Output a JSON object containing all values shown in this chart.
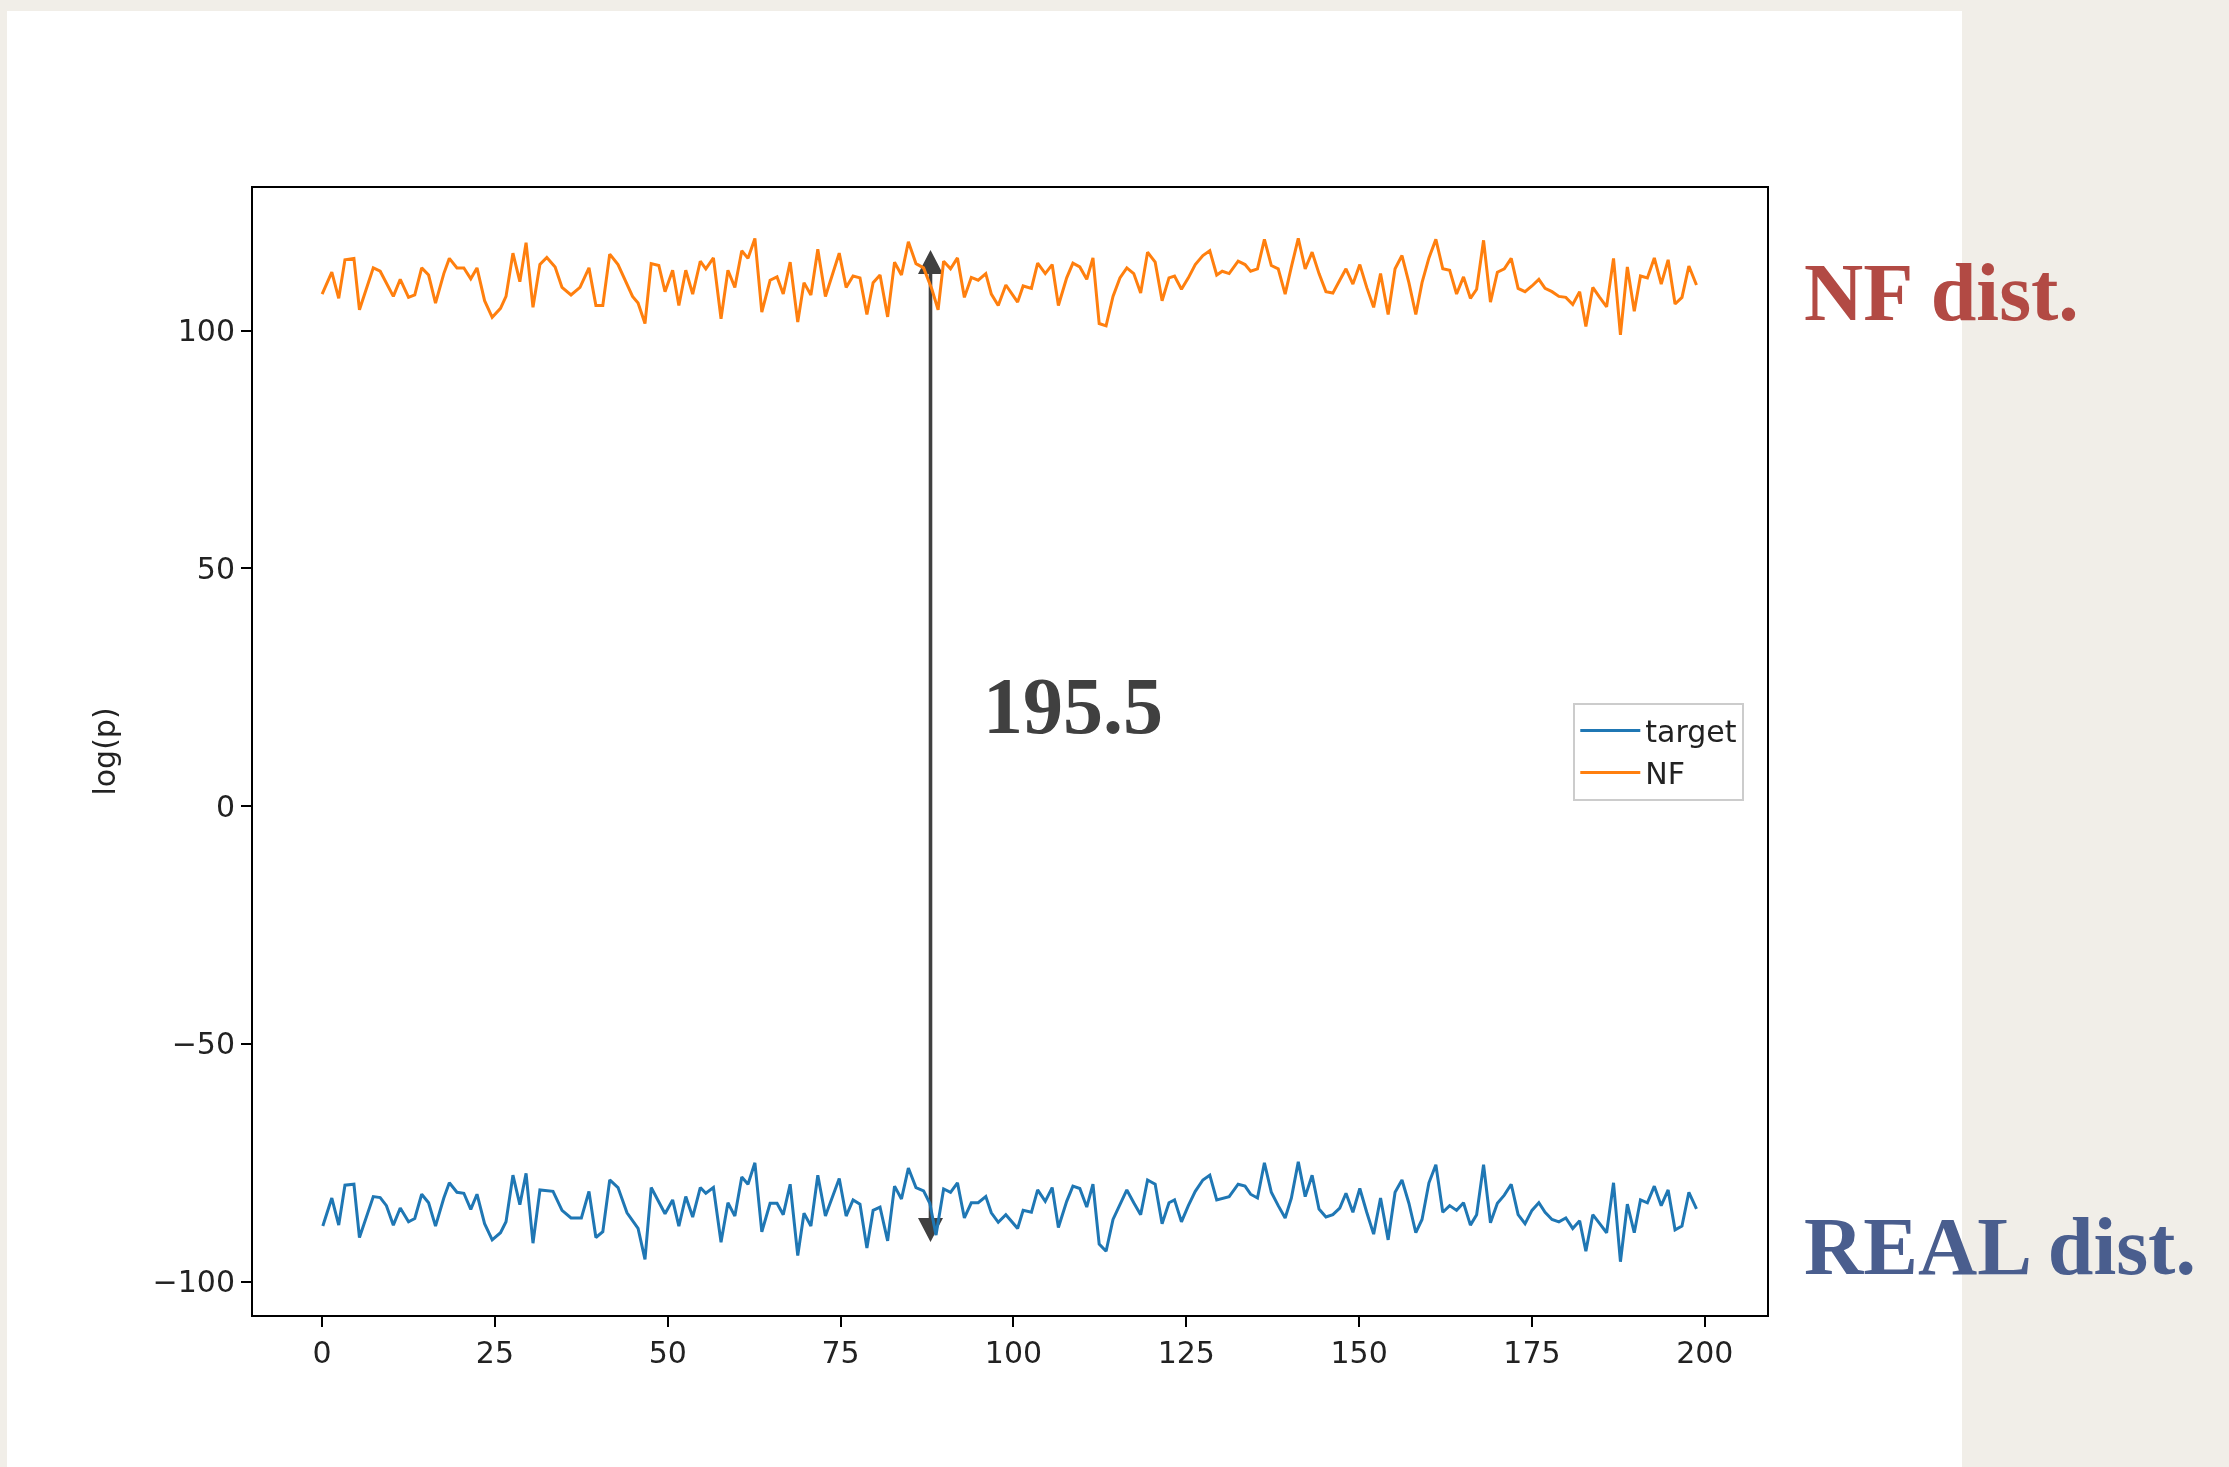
{
  "chart_data": {
    "type": "line",
    "ylabel": "log(p)",
    "xlim": [
      -10,
      209
    ],
    "ylim": [
      -107,
      130
    ],
    "xticks": [
      0,
      25,
      50,
      75,
      100,
      125,
      150,
      175,
      200
    ],
    "yticks": [
      -100,
      -50,
      0,
      50,
      100
    ],
    "grid": false,
    "legend": "right",
    "annotations": [
      "195.5",
      "NF dist.",
      "REAL dist."
    ],
    "series": [
      {
        "name": "target",
        "color": "#1f77b4",
        "x": [
          0.1,
          1.4,
          2.4,
          3.3,
          4.6,
          5.4,
          7.4,
          8.4,
          9.3,
          10.3,
          11.3,
          12.5,
          13.4,
          14.4,
          15.4,
          16.4,
          17.6,
          18.4,
          19.5,
          20.5,
          21.5,
          22.4,
          23.5,
          24.6,
          25.8,
          26.6,
          27.6,
          28.6,
          29.5,
          30.5,
          31.5,
          33.4,
          34.7,
          36.0,
          37.5,
          38.6,
          39.6,
          40.6,
          41.6,
          42.8,
          44.1,
          45.7,
          46.7,
          47.6,
          49.6,
          50.7,
          51.6,
          52.6,
          53.6,
          54.7,
          55.5,
          56.6,
          57.7,
          58.7,
          59.7,
          60.7,
          61.6,
          62.6,
          63.6,
          64.8,
          65.8,
          66.7,
          67.7,
          68.8,
          69.7,
          70.7,
          71.7,
          72.8,
          74.8,
          75.8,
          76.8,
          77.8,
          78.8,
          79.7,
          80.7,
          81.8,
          82.8,
          83.8,
          84.8,
          85.9,
          87.0,
          87.9,
          88.8,
          89.9,
          90.9,
          91.9,
          92.9,
          93.9,
          94.9,
          96.0,
          96.8,
          97.8,
          98.9,
          100.6,
          101.4,
          102.6,
          103.5,
          104.6,
          105.6,
          106.5,
          107.7,
          108.6,
          109.6,
          110.6,
          111.5,
          112.4,
          113.4,
          114.4,
          116.4,
          117.4,
          118.4,
          119.4,
          120.5,
          121.5,
          122.5,
          123.3,
          124.3,
          125.3,
          126.3,
          127.4,
          128.4,
          129.4,
          131.2,
          132.5,
          133.5,
          134.3,
          135.3,
          136.3,
          137.3,
          138.3,
          139.3,
          140.2,
          141.2,
          142.2,
          143.2,
          144.2,
          145.2,
          146.2,
          147.2,
          148.1,
          149.1,
          150.1,
          151.1,
          152.1,
          153.1,
          154.2,
          155.2,
          156.2,
          157.2,
          158.2,
          159.1,
          160.1,
          161.1,
          162.1,
          163.1,
          164.1,
          165.1,
          166.1,
          167.0,
          168.0,
          169.0,
          170.0,
          171.0,
          172.0,
          173.0,
          174.0,
          175.0,
          176.0,
          176.9,
          177.9,
          178.9,
          179.9,
          180.9,
          181.9,
          182.8,
          183.8,
          184.8,
          185.8,
          186.8,
          187.8,
          188.8,
          189.8,
          190.7,
          191.7,
          192.7,
          193.7,
          194.7,
          195.7,
          196.7,
          197.7,
          198.8
        ],
        "values": [
          -88.3,
          -82.4,
          -88.1,
          -79.7,
          -79.5,
          -90.7,
          -82.1,
          -82.3,
          -84.0,
          -88.1,
          -84.5,
          -87.4,
          -86.7,
          -81.6,
          -83.4,
          -88.3,
          -82.4,
          -79.2,
          -81.2,
          -81.4,
          -84.8,
          -81.6,
          -87.8,
          -91.2,
          -89.7,
          -87.4,
          -77.6,
          -83.8,
          -77.2,
          -91.9,
          -80.7,
          -81.0,
          -85.0,
          -86.6,
          -86.6,
          -81.0,
          -90.7,
          -89.5,
          -78.6,
          -80.2,
          -85.5,
          -88.8,
          -95.3,
          -80.2,
          -85.7,
          -82.8,
          -88.3,
          -82.1,
          -86.4,
          -80.2,
          -81.4,
          -80.2,
          -91.7,
          -83.4,
          -86.2,
          -78.0,
          -79.5,
          -75.0,
          -89.5,
          -83.5,
          -83.5,
          -85.9,
          -79.5,
          -94.5,
          -85.6,
          -88.3,
          -77.6,
          -86.2,
          -78.3,
          -86.2,
          -82.8,
          -83.7,
          -92.9,
          -85.0,
          -84.3,
          -91.4,
          -79.9,
          -82.6,
          -76.1,
          -80.2,
          -80.9,
          -83.5,
          -90.2,
          -80.5,
          -81.2,
          -79.2,
          -86.6,
          -83.4,
          -83.4,
          -82.1,
          -85.5,
          -87.5,
          -85.9,
          -88.8,
          -85.0,
          -85.4,
          -80.7,
          -83.1,
          -80.2,
          -88.6,
          -83.1,
          -79.9,
          -80.4,
          -84.3,
          -79.5,
          -92.1,
          -93.6,
          -86.9,
          -80.7,
          -83.4,
          -85.9,
          -78.6,
          -79.5,
          -87.8,
          -83.4,
          -82.8,
          -87.4,
          -84.0,
          -81.0,
          -78.6,
          -77.6,
          -82.8,
          -82.1,
          -79.5,
          -79.9,
          -81.6,
          -82.4,
          -75.0,
          -81.2,
          -84.0,
          -86.6,
          -82.4,
          -74.8,
          -82.1,
          -77.6,
          -84.7,
          -86.4,
          -85.9,
          -84.5,
          -81.4,
          -85.4,
          -80.4,
          -85.4,
          -90.0,
          -82.4,
          -91.2,
          -81.2,
          -78.6,
          -83.5,
          -89.7,
          -86.9,
          -79.2,
          -75.4,
          -85.4,
          -84.0,
          -85.0,
          -83.4,
          -88.1,
          -85.9,
          -75.4,
          -87.6,
          -83.5,
          -81.8,
          -79.5,
          -85.9,
          -87.8,
          -85.0,
          -83.4,
          -85.4,
          -86.9,
          -87.4,
          -86.6,
          -88.8,
          -87.2,
          -93.6,
          -85.9,
          -87.8,
          -89.7,
          -79.2,
          -95.8,
          -83.7,
          -89.7,
          -82.8,
          -83.4,
          -79.9,
          -84.0,
          -80.7,
          -89.1,
          -88.3,
          -81.2,
          -84.7
        ]
      },
      {
        "name": "NF",
        "color": "#ff7f0e",
        "x": [
          0,
          1.4,
          2.4,
          3.3,
          4.6,
          5.4,
          7.4,
          8.4,
          10.3,
          11.3,
          12.5,
          13.4,
          14.4,
          15.4,
          16.4,
          17.6,
          18.4,
          19.5,
          20.5,
          21.5,
          22.4,
          23.5,
          24.6,
          25.8,
          26.6,
          27.6,
          28.6,
          29.5,
          30.5,
          31.5,
          32.5,
          33.7,
          34.7,
          36.0,
          37.3,
          38.6,
          39.6,
          40.6,
          41.6,
          42.8,
          44.9,
          45.7,
          46.7,
          47.6,
          48.7,
          49.6,
          50.7,
          51.6,
          52.6,
          53.6,
          54.7,
          55.5,
          56.6,
          57.7,
          58.7,
          59.7,
          60.7,
          61.6,
          62.6,
          63.6,
          64.8,
          65.8,
          66.7,
          67.7,
          68.8,
          69.7,
          70.7,
          71.7,
          72.8,
          74.8,
          75.8,
          76.8,
          77.8,
          78.8,
          79.7,
          80.7,
          81.8,
          82.8,
          83.8,
          84.8,
          85.9,
          87.0,
          88.2,
          89.1,
          89.9,
          90.9,
          91.9,
          92.9,
          93.9,
          94.9,
          96.0,
          96.8,
          97.8,
          98.9,
          100.6,
          101.4,
          102.6,
          103.5,
          104.6,
          105.6,
          106.5,
          107.7,
          108.6,
          109.6,
          110.6,
          111.5,
          112.4,
          113.4,
          114.4,
          115.4,
          116.4,
          117.4,
          118.4,
          119.4,
          120.5,
          121.5,
          122.5,
          123.3,
          124.3,
          125.3,
          126.3,
          127.4,
          128.4,
          129.4,
          130.2,
          131.2,
          132.5,
          133.5,
          134.3,
          135.3,
          136.3,
          137.3,
          138.3,
          139.3,
          140.2,
          141.2,
          142.2,
          143.2,
          144.2,
          145.2,
          146.2,
          147.2,
          148.1,
          149.1,
          150.1,
          151.1,
          152.1,
          153.1,
          154.2,
          155.2,
          156.2,
          157.2,
          158.2,
          159.1,
          160.1,
          161.1,
          162.1,
          163.1,
          164.1,
          165.1,
          166.1,
          167.0,
          168.0,
          169.0,
          170.0,
          171.0,
          172.0,
          173.0,
          174.0,
          175.0,
          176.0,
          176.9,
          177.9,
          178.9,
          179.9,
          180.9,
          181.9,
          182.8,
          183.8,
          184.8,
          185.8,
          186.8,
          187.8,
          188.8,
          189.8,
          190.7,
          191.7,
          192.7,
          193.7,
          194.7,
          195.7,
          196.7,
          197.7,
          198.8
        ],
        "values": [
          107.7,
          112.3,
          106.8,
          114.9,
          115.2,
          104.4,
          113.2,
          112.5,
          107.2,
          110.8,
          107.0,
          107.5,
          113.2,
          111.7,
          105.8,
          112.0,
          115.2,
          113.2,
          113.2,
          110.9,
          113.2,
          106.3,
          102.8,
          104.7,
          107.2,
          116.3,
          110.3,
          118.5,
          104.9,
          113.9,
          115.4,
          113.4,
          109.1,
          107.5,
          109.1,
          113.2,
          105.3,
          105.3,
          116.1,
          113.9,
          107.2,
          105.8,
          101.5,
          114.1,
          113.7,
          108.2,
          112.7,
          105.3,
          112.7,
          107.7,
          114.6,
          113.0,
          115.3,
          102.5,
          112.7,
          109.1,
          116.8,
          115.2,
          119.4,
          103.9,
          110.6,
          111.3,
          107.7,
          114.4,
          101.8,
          110.1,
          107.5,
          117.1,
          107.2,
          116.3,
          109.1,
          111.5,
          111.1,
          103.4,
          110.1,
          111.7,
          102.9,
          114.4,
          111.7,
          118.7,
          114.1,
          113.2,
          108.7,
          104.4,
          114.6,
          113.0,
          115.3,
          107.0,
          111.2,
          110.6,
          112.0,
          107.7,
          105.3,
          109.6,
          106.0,
          109.4,
          108.9,
          114.2,
          112.0,
          113.9,
          105.3,
          111.1,
          114.2,
          113.4,
          110.8,
          115.3,
          101.5,
          101.0,
          107.2,
          111.1,
          113.2,
          112.0,
          107.9,
          116.5,
          114.4,
          106.3,
          111.1,
          111.5,
          108.7,
          111.1,
          113.9,
          115.8,
          116.8,
          111.7,
          112.5,
          112.0,
          114.6,
          113.9,
          112.5,
          113.0,
          119.2,
          113.7,
          113.0,
          107.7,
          113.4,
          119.4,
          113.0,
          116.5,
          112.0,
          108.2,
          107.9,
          110.6,
          113.0,
          109.8,
          113.9,
          109.1,
          104.9,
          112.0,
          103.4,
          113.0,
          115.8,
          110.1,
          103.4,
          110.1,
          115.3,
          119.2,
          113.0,
          112.7,
          107.7,
          111.3,
          106.8,
          108.7,
          119.0,
          106.0,
          112.3,
          113.0,
          115.2,
          108.9,
          108.2,
          109.4,
          110.8,
          108.9,
          108.2,
          107.2,
          107.0,
          105.5,
          108.2,
          100.9,
          109.1,
          107.0,
          105.0,
          115.2,
          99.1,
          113.4,
          104.1,
          111.5,
          111.1,
          115.3,
          109.8,
          114.9,
          105.6,
          107.0,
          113.6,
          109.6
        ]
      }
    ]
  }
}
